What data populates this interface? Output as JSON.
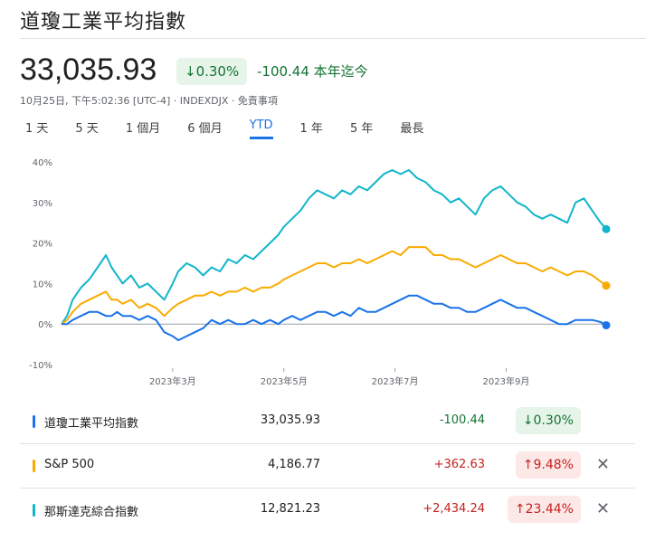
{
  "header": {
    "title": "道瓊工業平均指數",
    "price": "33,035.93",
    "change_pct": "0.30%",
    "change_text": "-100.44 本年迄今",
    "meta": "10月25日, 下午5:02:36 [UTC-4] · INDEXDJX · 免責事項"
  },
  "ranges": [
    {
      "label": "1 天",
      "active": false
    },
    {
      "label": "5 天",
      "active": false
    },
    {
      "label": "1 個月",
      "active": false
    },
    {
      "label": "6 個月",
      "active": false
    },
    {
      "label": "YTD",
      "active": true
    },
    {
      "label": "1 年",
      "active": false
    },
    {
      "label": "5 年",
      "active": false
    },
    {
      "label": "最長",
      "active": false
    }
  ],
  "chart_data": {
    "type": "line",
    "ylim": [
      -10,
      40
    ],
    "y_ticks": [
      -10,
      0,
      10,
      20,
      30,
      40
    ],
    "y_tick_labels": [
      "-10%",
      "0%",
      "10%",
      "20%",
      "30%",
      "40%"
    ],
    "x_tick_labels": [
      "2023年3月",
      "2023年5月",
      "2023年7月",
      "2023年9月"
    ],
    "x_tick_months": [
      2,
      4,
      6,
      8
    ],
    "series": [
      {
        "name": "那斯達克綜合指數",
        "color": "#12b5cb",
        "x_months": [
          0,
          0.1,
          0.2,
          0.35,
          0.5,
          0.65,
          0.8,
          0.9,
          1.0,
          1.1,
          1.25,
          1.4,
          1.55,
          1.7,
          1.85,
          2.0,
          2.1,
          2.25,
          2.4,
          2.55,
          2.7,
          2.85,
          3.0,
          3.15,
          3.3,
          3.45,
          3.6,
          3.75,
          3.9,
          4.0,
          4.15,
          4.3,
          4.45,
          4.6,
          4.75,
          4.9,
          5.05,
          5.2,
          5.35,
          5.5,
          5.65,
          5.8,
          5.95,
          6.1,
          6.25,
          6.4,
          6.55,
          6.7,
          6.85,
          7.0,
          7.15,
          7.3,
          7.45,
          7.6,
          7.75,
          7.9,
          8.05,
          8.2,
          8.35,
          8.5,
          8.65,
          8.8,
          8.95,
          9.1,
          9.25,
          9.4,
          9.55,
          9.7,
          9.8
        ],
        "values": [
          0,
          2,
          6,
          9,
          11,
          14,
          17,
          14,
          12,
          10,
          12,
          9,
          10,
          8,
          6,
          10,
          13,
          15,
          14,
          12,
          14,
          13,
          16,
          15,
          17,
          16,
          18,
          20,
          22,
          24,
          26,
          28,
          31,
          33,
          32,
          31,
          33,
          32,
          34,
          33,
          35,
          37,
          38,
          37,
          38,
          36,
          35,
          33,
          32,
          30,
          31,
          29,
          27,
          31,
          33,
          34,
          32,
          30,
          29,
          27,
          26,
          27,
          26,
          25,
          30,
          31,
          28,
          25,
          23.44
        ]
      },
      {
        "name": "S&P 500",
        "color": "#f9ab00",
        "x_months": [
          0,
          0.1,
          0.2,
          0.35,
          0.5,
          0.65,
          0.8,
          0.9,
          1.0,
          1.1,
          1.25,
          1.4,
          1.55,
          1.7,
          1.85,
          2.0,
          2.1,
          2.25,
          2.4,
          2.55,
          2.7,
          2.85,
          3.0,
          3.15,
          3.3,
          3.45,
          3.6,
          3.75,
          3.9,
          4.0,
          4.15,
          4.3,
          4.45,
          4.6,
          4.75,
          4.9,
          5.05,
          5.2,
          5.35,
          5.5,
          5.65,
          5.8,
          5.95,
          6.1,
          6.25,
          6.4,
          6.55,
          6.7,
          6.85,
          7.0,
          7.15,
          7.3,
          7.45,
          7.6,
          7.75,
          7.9,
          8.05,
          8.2,
          8.35,
          8.5,
          8.65,
          8.8,
          8.95,
          9.1,
          9.25,
          9.4,
          9.55,
          9.7,
          9.8
        ],
        "values": [
          0,
          1,
          3,
          5,
          6,
          7,
          8,
          6,
          6,
          5,
          6,
          4,
          5,
          4,
          2,
          4,
          5,
          6,
          7,
          7,
          8,
          7,
          8,
          8,
          9,
          8,
          9,
          9,
          10,
          11,
          12,
          13,
          14,
          15,
          15,
          14,
          15,
          15,
          16,
          15,
          16,
          17,
          18,
          17,
          19,
          19,
          19,
          17,
          17,
          16,
          16,
          15,
          14,
          15,
          16,
          17,
          16,
          15,
          15,
          14,
          13,
          14,
          13,
          12,
          13,
          13,
          12,
          10.5,
          9.48
        ]
      },
      {
        "name": "道瓊工業平均指數",
        "color": "#1a73e8",
        "x_months": [
          0,
          0.1,
          0.2,
          0.35,
          0.5,
          0.65,
          0.8,
          0.9,
          1.0,
          1.1,
          1.25,
          1.4,
          1.55,
          1.7,
          1.85,
          2.0,
          2.1,
          2.25,
          2.4,
          2.55,
          2.7,
          2.85,
          3.0,
          3.15,
          3.3,
          3.45,
          3.6,
          3.75,
          3.9,
          4.0,
          4.15,
          4.3,
          4.45,
          4.6,
          4.75,
          4.9,
          5.05,
          5.2,
          5.35,
          5.5,
          5.65,
          5.8,
          5.95,
          6.1,
          6.25,
          6.4,
          6.55,
          6.7,
          6.85,
          7.0,
          7.15,
          7.3,
          7.45,
          7.6,
          7.75,
          7.9,
          8.05,
          8.2,
          8.35,
          8.5,
          8.65,
          8.8,
          8.95,
          9.1,
          9.25,
          9.4,
          9.55,
          9.7,
          9.8
        ],
        "values": [
          0,
          0,
          1,
          2,
          3,
          3,
          2,
          2,
          3,
          2,
          2,
          1,
          2,
          1,
          -2,
          -3,
          -4,
          -3,
          -2,
          -1,
          1,
          0,
          1,
          0,
          0,
          1,
          0,
          1,
          0,
          1,
          2,
          1,
          2,
          3,
          3,
          2,
          3,
          2,
          4,
          3,
          3,
          4,
          5,
          6,
          7,
          7,
          6,
          5,
          5,
          4,
          4,
          3,
          3,
          4,
          5,
          6,
          5,
          4,
          4,
          3,
          2,
          1,
          0,
          0,
          1,
          1,
          1,
          0.5,
          -0.3
        ]
      }
    ]
  },
  "rows": [
    {
      "name": "道瓊工業平均指數",
      "color": "#1a73e8",
      "price": "33,035.93",
      "change": "-100.44",
      "pct": "↓0.30%",
      "dir": "neg",
      "closable": false
    },
    {
      "name": "S&P 500",
      "color": "#f9ab00",
      "price": "4,186.77",
      "change": "+362.63",
      "pct": "↑9.48%",
      "dir": "pos",
      "closable": true
    },
    {
      "name": "那斯達克綜合指數",
      "color": "#12b5cb",
      "price": "12,821.23",
      "change": "+2,434.24",
      "pct": "↑23.44%",
      "dir": "pos",
      "closable": true
    }
  ],
  "icons": {
    "down_arrow": "↓",
    "close": "✕"
  }
}
